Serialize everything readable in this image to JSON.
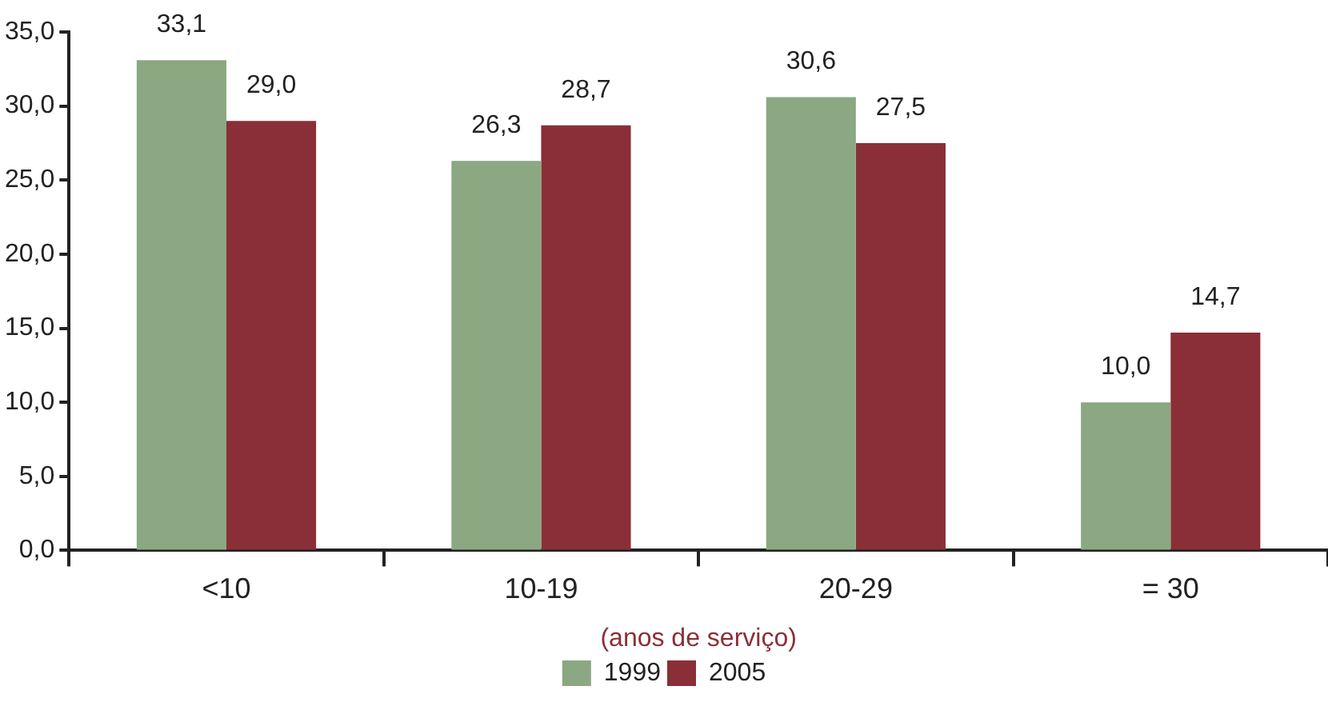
{
  "chart_data": {
    "type": "bar",
    "xlabel": "(anos de serviço)",
    "categories": [
      "<10",
      "10-19",
      "20-29",
      "= 30"
    ],
    "series": [
      {
        "name": "1999",
        "color": "#8ba882",
        "values": [
          33.1,
          26.3,
          30.6,
          10.0
        ],
        "value_labels": [
          "33,1",
          "26,3",
          "30,6",
          "10,0"
        ]
      },
      {
        "name": "2005",
        "color": "#8a2f37",
        "values": [
          29.0,
          28.7,
          27.5,
          14.7
        ],
        "value_labels": [
          "29,0",
          "28,7",
          "27,5",
          "14,7"
        ]
      }
    ],
    "ylim": [
      0,
      35
    ],
    "yticks": [
      {
        "value": 0,
        "label": "0,0"
      },
      {
        "value": 5,
        "label": "5,0"
      },
      {
        "value": 10,
        "label": "10,0"
      },
      {
        "value": 15,
        "label": "15,0"
      },
      {
        "value": 20,
        "label": "20,0"
      },
      {
        "value": 25,
        "label": "25,0"
      },
      {
        "value": 30,
        "label": "30,0"
      },
      {
        "value": 35,
        "label": "35,0"
      }
    ],
    "grid": false,
    "legend": "bottom"
  }
}
